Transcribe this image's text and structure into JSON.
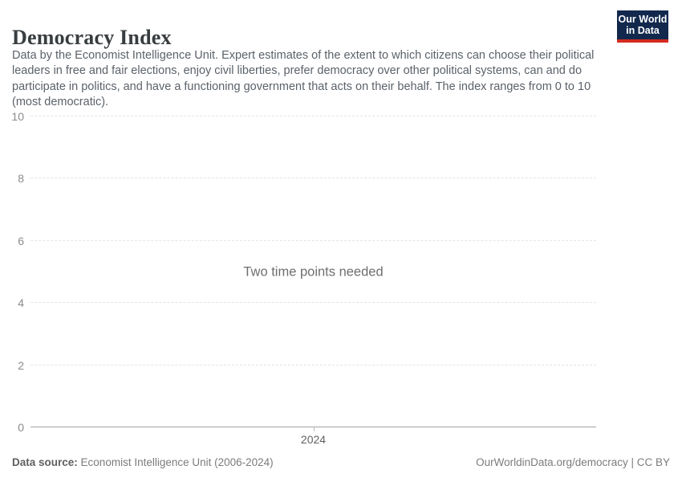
{
  "header": {
    "title": "Democracy Index",
    "subtitle": "Data by the Economist Intelligence Unit. Expert estimates of the extent to which citizens can choose their political leaders in free and fair elections, enjoy civil liberties, prefer democracy over other political systems, can and do participate in politics, and have a functioning government that acts on their behalf. The index ranges from 0 to 10 (most democratic)."
  },
  "logo": {
    "line1": "Our World",
    "line2": "in Data",
    "bg_color": "#12294d",
    "bar_color": "#d42b21"
  },
  "chart_data": {
    "type": "line",
    "title": "Democracy Index",
    "series": [],
    "message": "Two time points needed",
    "ylim": [
      0,
      10
    ],
    "yticks": [
      0,
      2,
      4,
      6,
      8,
      10
    ],
    "xticks": [
      "2024"
    ],
    "grid": true,
    "gridline_color": "#e6e6e6",
    "axis_color": "#a5a5a5",
    "legend": "none"
  },
  "footer": {
    "source_label": "Data source:",
    "source_value": "Economist Intelligence Unit (2006-2024)",
    "credit": "OurWorldinData.org/democracy | CC BY"
  }
}
